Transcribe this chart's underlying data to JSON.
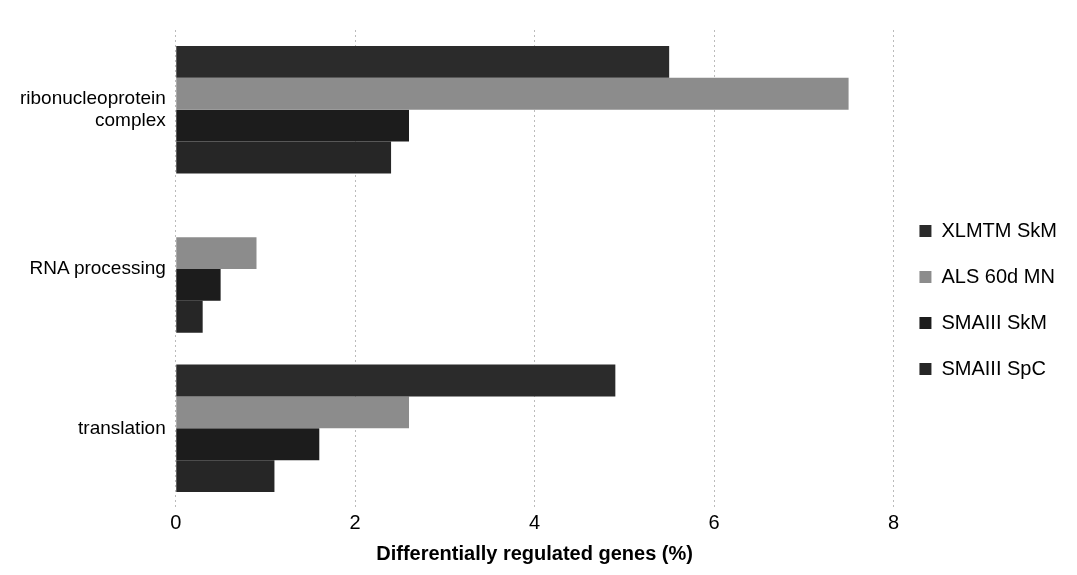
{
  "chart_data": {
    "type": "bar",
    "orientation": "horizontal",
    "xlabel": "Differentially regulated genes (%)",
    "categories": [
      [
        "ribonucleoprotein",
        "complex"
      ],
      "RNA processing",
      "translation"
    ],
    "series": [
      {
        "name": "XLMTM SkM",
        "color": "#2b2b2b",
        "values": [
          5.5,
          0,
          4.9
        ]
      },
      {
        "name": "ALS 60d MN",
        "color": "#8c8c8c",
        "values": [
          7.5,
          0.9,
          2.6
        ]
      },
      {
        "name": "SMAIII SkM",
        "color": "#1c1c1c",
        "values": [
          2.6,
          0.5,
          1.6
        ]
      },
      {
        "name": "SMAIII SpC",
        "color": "#262626",
        "values": [
          2.4,
          0.3,
          1.1
        ]
      }
    ],
    "xlim": [
      0,
      8
    ],
    "xticks": [
      0,
      2,
      4,
      6,
      8
    ],
    "grid": "x",
    "legend": "right"
  }
}
